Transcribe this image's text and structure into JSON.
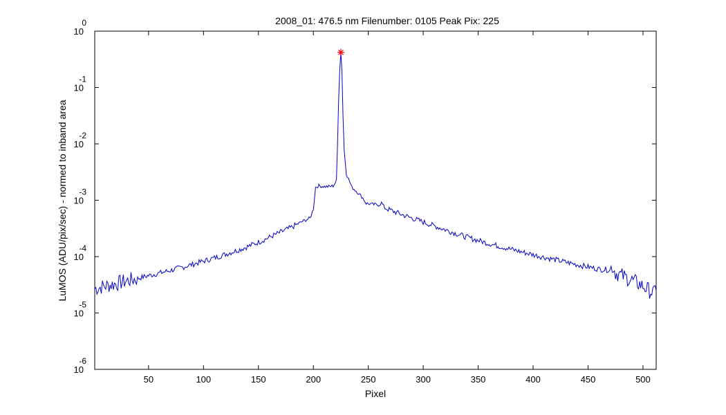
{
  "chart_data": {
    "type": "line",
    "title": "2008_01: 476.5 nm  Filenumber: 0105 Peak Pix: 225",
    "xlabel": "Pixel",
    "ylabel": "LuMOS (ADU/pix/sec) - normed to inband area",
    "xlim": [
      1,
      512
    ],
    "ylim": [
      1e-06,
      1
    ],
    "yscale": "log",
    "grid": false,
    "xticks": [
      50,
      100,
      150,
      200,
      250,
      300,
      350,
      400,
      450,
      500
    ],
    "yticks": [
      {
        "base": "10",
        "exp": "0",
        "value": 1
      },
      {
        "base": "10",
        "exp": "-1",
        "value": 0.1
      },
      {
        "base": "10",
        "exp": "-2",
        "value": 0.01
      },
      {
        "base": "10",
        "exp": "-3",
        "value": 0.001
      },
      {
        "base": "10",
        "exp": "-4",
        "value": 0.0001
      },
      {
        "base": "10",
        "exp": "-5",
        "value": 1e-05
      },
      {
        "base": "10",
        "exp": "-6",
        "value": 1e-06
      }
    ],
    "series": [
      {
        "color": "#0000cc",
        "points": [
          [
            1,
            2.7e-05
          ],
          [
            10,
            3e-05
          ],
          [
            20,
            3.3e-05
          ],
          [
            30,
            3.7e-05
          ],
          [
            40,
            4.1e-05
          ],
          [
            50,
            4.6e-05
          ],
          [
            60,
            5.1e-05
          ],
          [
            70,
            5.7e-05
          ],
          [
            80,
            6.4e-05
          ],
          [
            90,
            7.3e-05
          ],
          [
            100,
            8.3e-05
          ],
          [
            110,
            9.5e-05
          ],
          [
            120,
            0.00011
          ],
          [
            130,
            0.000128
          ],
          [
            140,
            0.00015
          ],
          [
            150,
            0.00018
          ],
          [
            160,
            0.00022
          ],
          [
            170,
            0.00027
          ],
          [
            180,
            0.00033
          ],
          [
            190,
            0.00042
          ],
          [
            197,
            0.00048
          ],
          [
            200,
            0.0007
          ],
          [
            202,
            0.0017
          ],
          [
            205,
            0.0018
          ],
          [
            210,
            0.00175
          ],
          [
            215,
            0.00175
          ],
          [
            218,
            0.0018
          ],
          [
            221,
            0.0022
          ],
          [
            222,
            0.01
          ],
          [
            223,
            0.06
          ],
          [
            224,
            0.2
          ],
          [
            225,
            0.42
          ],
          [
            226,
            0.2
          ],
          [
            227,
            0.03
          ],
          [
            228,
            0.008
          ],
          [
            230,
            0.003
          ],
          [
            235,
            0.0017
          ],
          [
            240,
            0.0014
          ],
          [
            245,
            0.0011
          ],
          [
            248,
            0.00088
          ],
          [
            255,
            0.00084
          ],
          [
            260,
            0.00083
          ],
          [
            262,
            0.0009
          ],
          [
            265,
            0.00073
          ],
          [
            280,
            0.00056
          ],
          [
            300,
            0.00041
          ],
          [
            320,
            0.0003
          ],
          [
            340,
            0.00022
          ],
          [
            360,
            0.00017
          ],
          [
            380,
            0.000135
          ],
          [
            400,
            0.000108
          ],
          [
            420,
            8.8e-05
          ],
          [
            440,
            7.2e-05
          ],
          [
            460,
            6e-05
          ],
          [
            470,
            5.8e-05
          ],
          [
            472,
            6.8e-05
          ],
          [
            475,
            5.2e-05
          ],
          [
            490,
            3.8e-05
          ],
          [
            500,
            3e-05
          ],
          [
            510,
            2.2e-05
          ],
          [
            512,
            3e-05
          ]
        ]
      }
    ],
    "marker": {
      "x": 225,
      "y": 0.42,
      "symbol": "*",
      "color": "#ff0000"
    }
  }
}
